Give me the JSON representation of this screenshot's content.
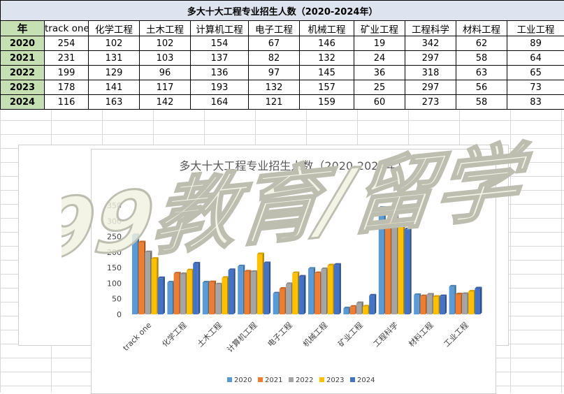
{
  "table": {
    "title": "多大十大工程专业招生人数（2020-2024年）",
    "year_header": "年",
    "columns": [
      "track one",
      "化学工程",
      "土木工程",
      "计算机工程",
      "电子工程",
      "机械工程",
      "矿业工程",
      "工程科学",
      "材料工程",
      "工业工程"
    ],
    "rows": [
      {
        "year": "2020",
        "values": [
          "254",
          "102",
          "102",
          "154",
          "67",
          "146",
          "19",
          "342",
          "62",
          "89"
        ]
      },
      {
        "year": "2021",
        "values": [
          "231",
          "131",
          "103",
          "137",
          "82",
          "132",
          "24",
          "297",
          "58",
          "64"
        ]
      },
      {
        "year": "2022",
        "values": [
          "199",
          "129",
          "96",
          "136",
          "97",
          "145",
          "36",
          "318",
          "63",
          "65"
        ]
      },
      {
        "year": "2023",
        "values": [
          "178",
          "141",
          "117",
          "193",
          "132",
          "157",
          "25",
          "297",
          "56",
          "73"
        ]
      },
      {
        "year": "2024",
        "values": [
          "116",
          "163",
          "142",
          "164",
          "121",
          "159",
          "60",
          "273",
          "58",
          "83"
        ]
      }
    ]
  },
  "watermark": "99教育/留学",
  "chart_data": {
    "type": "bar",
    "title": "多大十大工程专业招生人数（2020-2024年）",
    "categories": [
      "track one",
      "化学工程",
      "土木工程",
      "计算机工程",
      "电子工程",
      "机械工程",
      "矿业工程",
      "工程科学",
      "材料工程",
      "工业工程"
    ],
    "series": [
      {
        "name": "2020",
        "color": "#5b9bd5",
        "values": [
          254,
          102,
          102,
          154,
          67,
          146,
          19,
          342,
          62,
          89
        ]
      },
      {
        "name": "2021",
        "color": "#ed7d31",
        "values": [
          231,
          131,
          103,
          137,
          82,
          132,
          24,
          297,
          58,
          64
        ]
      },
      {
        "name": "2022",
        "color": "#a5a5a5",
        "values": [
          199,
          129,
          96,
          136,
          97,
          145,
          36,
          318,
          63,
          65
        ]
      },
      {
        "name": "2023",
        "color": "#ffc000",
        "values": [
          178,
          141,
          117,
          193,
          132,
          157,
          25,
          297,
          56,
          73
        ]
      },
      {
        "name": "2024",
        "color": "#4472c4",
        "values": [
          116,
          163,
          142,
          164,
          121,
          159,
          60,
          273,
          58,
          83
        ]
      }
    ],
    "ylim": [
      0,
      350
    ],
    "yticks": [
      0,
      50,
      100,
      150,
      200,
      250,
      300,
      350
    ],
    "legend_position": "bottom",
    "grid": false
  }
}
